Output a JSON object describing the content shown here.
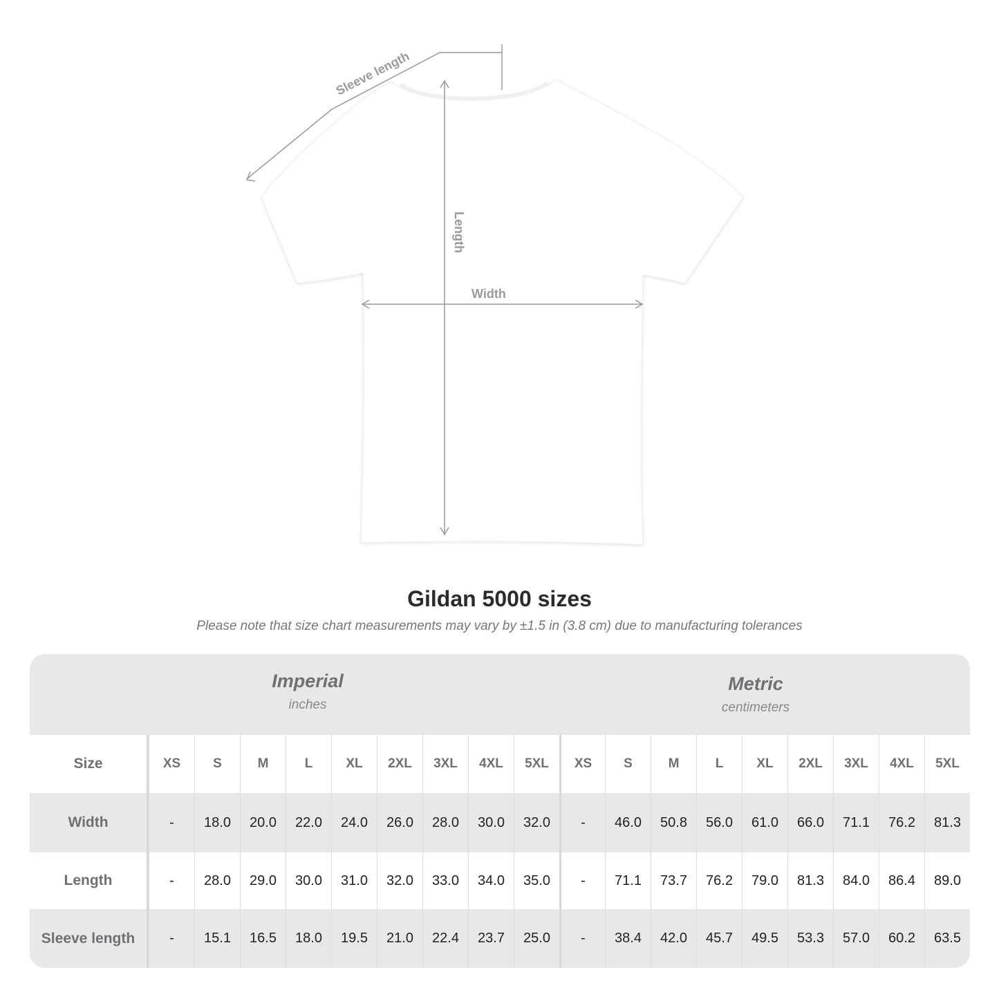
{
  "diagram": {
    "sleeve_label": "Sleeve length",
    "length_label": "Length",
    "width_label": "Width",
    "shirt_color": "#ffffff",
    "line_color": "#9a9a9a"
  },
  "title": "Gildan 5000 sizes",
  "note": "Please note that size chart measurements may vary by ±1.5 in (3.8 cm) due to manufacturing tolerances",
  "table": {
    "imperial": {
      "name": "Imperial",
      "unit": "inches"
    },
    "metric": {
      "name": "Metric",
      "unit": "centimeters"
    },
    "size_label": "Size",
    "sizes": [
      "XS",
      "S",
      "M",
      "L",
      "XL",
      "2XL",
      "3XL",
      "4XL",
      "5XL"
    ],
    "rows": [
      {
        "label": "Width",
        "imperial": [
          "-",
          "18.0",
          "20.0",
          "22.0",
          "24.0",
          "26.0",
          "28.0",
          "30.0",
          "32.0"
        ],
        "metric": [
          "-",
          "46.0",
          "50.8",
          "56.0",
          "61.0",
          "66.0",
          "71.1",
          "76.2",
          "81.3"
        ]
      },
      {
        "label": "Length",
        "imperial": [
          "-",
          "28.0",
          "29.0",
          "30.0",
          "31.0",
          "32.0",
          "33.0",
          "34.0",
          "35.0"
        ],
        "metric": [
          "-",
          "71.1",
          "73.7",
          "76.2",
          "79.0",
          "81.3",
          "84.0",
          "86.4",
          "89.0"
        ]
      },
      {
        "label": "Sleeve length",
        "imperial": [
          "-",
          "15.1",
          "16.5",
          "18.0",
          "19.5",
          "21.0",
          "22.4",
          "23.7",
          "25.0"
        ],
        "metric": [
          "-",
          "38.4",
          "42.0",
          "45.7",
          "49.5",
          "53.3",
          "57.0",
          "60.2",
          "63.5"
        ]
      }
    ]
  }
}
